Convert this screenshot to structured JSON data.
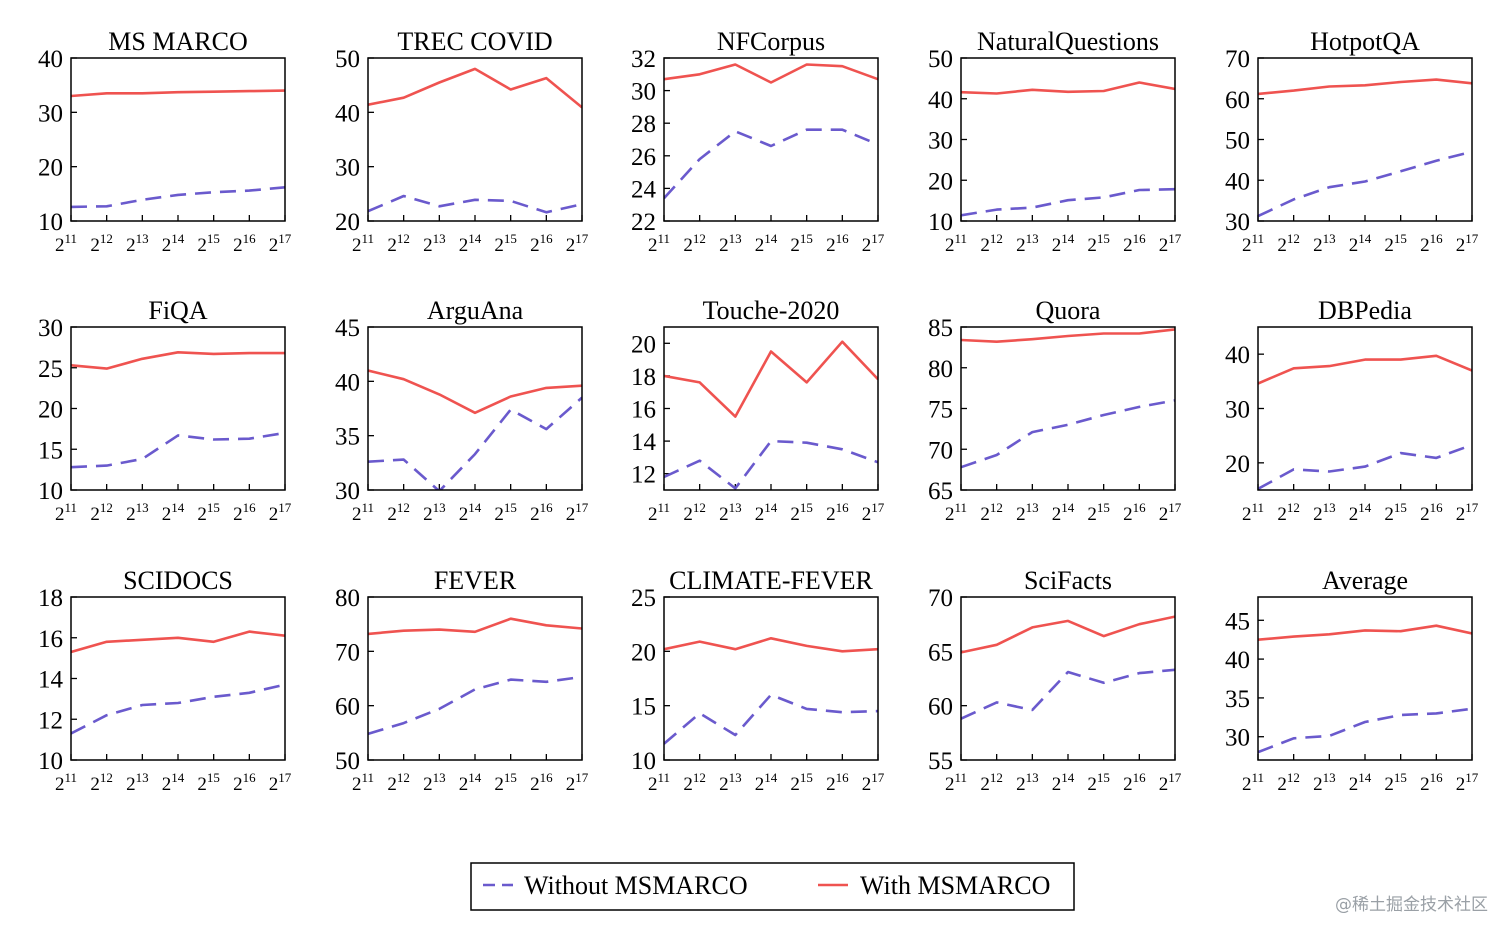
{
  "figure": {
    "x_tick_base": "2",
    "x_tick_exponents": [
      "11",
      "12",
      "13",
      "14",
      "15",
      "16",
      "17"
    ],
    "legend": {
      "entries": [
        {
          "label": "Without MSMARCO",
          "color": "#6a5acd",
          "style": "dashed"
        },
        {
          "label": "With MSMARCO",
          "color": "#ef5350",
          "style": "solid"
        }
      ],
      "placement": "bottom-center"
    },
    "watermark": "@稀土掘金技术社区"
  },
  "chart_data": [
    {
      "type": "line",
      "title": "MS MARCO",
      "x": [
        11,
        12,
        13,
        14,
        15,
        16,
        17
      ],
      "xscale": "log2",
      "ylim": [
        10,
        40
      ],
      "yticks": [
        10,
        20,
        30,
        40
      ],
      "series": [
        {
          "name": "Without MSMARCO",
          "values": [
            12.6,
            12.7,
            13.9,
            14.8,
            15.3,
            15.6,
            16.2
          ]
        },
        {
          "name": "With MSMARCO",
          "values": [
            33.0,
            33.5,
            33.5,
            33.7,
            33.8,
            33.9,
            34.0
          ]
        }
      ]
    },
    {
      "type": "line",
      "title": "TREC COVID",
      "x": [
        11,
        12,
        13,
        14,
        15,
        16,
        17
      ],
      "xscale": "log2",
      "ylim": [
        20,
        50
      ],
      "yticks": [
        20,
        30,
        40,
        50
      ],
      "series": [
        {
          "name": "Without MSMARCO",
          "values": [
            21.8,
            24.6,
            22.7,
            23.9,
            23.7,
            21.6,
            23.1
          ]
        },
        {
          "name": "With MSMARCO",
          "values": [
            41.4,
            42.7,
            45.5,
            48.0,
            44.2,
            46.3,
            40.9
          ]
        }
      ]
    },
    {
      "type": "line",
      "title": "NFCorpus",
      "x": [
        11,
        12,
        13,
        14,
        15,
        16,
        17
      ],
      "xscale": "log2",
      "ylim": [
        22,
        32
      ],
      "yticks": [
        22,
        24,
        26,
        28,
        30,
        32
      ],
      "series": [
        {
          "name": "Without MSMARCO",
          "values": [
            23.4,
            25.8,
            27.5,
            26.6,
            27.6,
            27.6,
            26.7
          ]
        },
        {
          "name": "With MSMARCO",
          "values": [
            30.7,
            31.0,
            31.6,
            30.5,
            31.6,
            31.5,
            30.7
          ]
        }
      ]
    },
    {
      "type": "line",
      "title": "NaturalQuestions",
      "x": [
        11,
        12,
        13,
        14,
        15,
        16,
        17
      ],
      "xscale": "log2",
      "ylim": [
        10,
        50
      ],
      "yticks": [
        10,
        20,
        30,
        40,
        50
      ],
      "series": [
        {
          "name": "Without MSMARCO",
          "values": [
            11.4,
            12.8,
            13.3,
            15.1,
            15.8,
            17.6,
            17.8
          ]
        },
        {
          "name": "With MSMARCO",
          "values": [
            41.6,
            41.3,
            42.2,
            41.7,
            41.9,
            44.0,
            42.4
          ]
        }
      ]
    },
    {
      "type": "line",
      "title": "HotpotQA",
      "x": [
        11,
        12,
        13,
        14,
        15,
        16,
        17
      ],
      "xscale": "log2",
      "ylim": [
        30,
        70
      ],
      "yticks": [
        30,
        40,
        50,
        60,
        70
      ],
      "series": [
        {
          "name": "Without MSMARCO",
          "values": [
            31.2,
            35.3,
            38.3,
            39.7,
            42.2,
            44.8,
            47.0
          ]
        },
        {
          "name": "With MSMARCO",
          "values": [
            61.2,
            62.0,
            63.0,
            63.3,
            64.1,
            64.7,
            63.8
          ]
        }
      ]
    },
    {
      "type": "line",
      "title": "FiQA",
      "x": [
        11,
        12,
        13,
        14,
        15,
        16,
        17
      ],
      "xscale": "log2",
      "ylim": [
        10,
        30
      ],
      "yticks": [
        10,
        15,
        20,
        25,
        30
      ],
      "series": [
        {
          "name": "Without MSMARCO",
          "values": [
            12.8,
            13.0,
            13.8,
            16.7,
            16.2,
            16.3,
            17.0
          ]
        },
        {
          "name": "With MSMARCO",
          "values": [
            25.3,
            24.9,
            26.1,
            26.9,
            26.7,
            26.8,
            26.8
          ]
        }
      ]
    },
    {
      "type": "line",
      "title": "ArguAna",
      "x": [
        11,
        12,
        13,
        14,
        15,
        16,
        17
      ],
      "xscale": "log2",
      "ylim": [
        30,
        45
      ],
      "yticks": [
        30,
        35,
        40,
        45
      ],
      "series": [
        {
          "name": "Without MSMARCO",
          "values": [
            32.6,
            32.8,
            29.9,
            33.3,
            37.4,
            35.6,
            38.5
          ]
        },
        {
          "name": "With MSMARCO",
          "values": [
            41.0,
            40.2,
            38.8,
            37.1,
            38.6,
            39.4,
            39.6
          ]
        }
      ]
    },
    {
      "type": "line",
      "title": "Touche-2020",
      "x": [
        11,
        12,
        13,
        14,
        15,
        16,
        17
      ],
      "xscale": "log2",
      "ylim": [
        11,
        21
      ],
      "yticks": [
        12,
        14,
        16,
        18,
        20
      ],
      "series": [
        {
          "name": "Without MSMARCO",
          "values": [
            11.8,
            12.8,
            11.1,
            14.0,
            13.9,
            13.5,
            12.7
          ]
        },
        {
          "name": "With MSMARCO",
          "values": [
            18.0,
            17.6,
            15.5,
            19.5,
            17.6,
            20.1,
            17.8
          ]
        }
      ]
    },
    {
      "type": "line",
      "title": "Quora",
      "x": [
        11,
        12,
        13,
        14,
        15,
        16,
        17
      ],
      "xscale": "log2",
      "ylim": [
        65,
        85
      ],
      "yticks": [
        65,
        70,
        75,
        80,
        85
      ],
      "series": [
        {
          "name": "Without MSMARCO",
          "values": [
            67.8,
            69.3,
            72.1,
            73.0,
            74.2,
            75.2,
            76.0
          ]
        },
        {
          "name": "With MSMARCO",
          "values": [
            83.4,
            83.2,
            83.5,
            83.9,
            84.2,
            84.2,
            84.7
          ]
        }
      ]
    },
    {
      "type": "line",
      "title": "DBPedia",
      "x": [
        11,
        12,
        13,
        14,
        15,
        16,
        17
      ],
      "xscale": "log2",
      "ylim": [
        15,
        45
      ],
      "yticks": [
        20,
        30,
        40
      ],
      "series": [
        {
          "name": "Without MSMARCO",
          "values": [
            15.2,
            18.8,
            18.4,
            19.3,
            21.8,
            20.9,
            23.3
          ]
        },
        {
          "name": "With MSMARCO",
          "values": [
            34.6,
            37.4,
            37.8,
            39.0,
            39.0,
            39.7,
            37.0
          ]
        }
      ]
    },
    {
      "type": "line",
      "title": "SCIDOCS",
      "x": [
        11,
        12,
        13,
        14,
        15,
        16,
        17
      ],
      "xscale": "log2",
      "ylim": [
        10,
        18
      ],
      "yticks": [
        10,
        12,
        14,
        16,
        18
      ],
      "series": [
        {
          "name": "Without MSMARCO",
          "values": [
            11.3,
            12.2,
            12.7,
            12.8,
            13.1,
            13.3,
            13.7
          ]
        },
        {
          "name": "With MSMARCO",
          "values": [
            15.3,
            15.8,
            15.9,
            16.0,
            15.8,
            16.3,
            16.1
          ]
        }
      ]
    },
    {
      "type": "line",
      "title": "FEVER",
      "x": [
        11,
        12,
        13,
        14,
        15,
        16,
        17
      ],
      "xscale": "log2",
      "ylim": [
        50,
        80
      ],
      "yticks": [
        50,
        60,
        70,
        80
      ],
      "series": [
        {
          "name": "Without MSMARCO",
          "values": [
            54.8,
            56.8,
            59.4,
            63.0,
            64.8,
            64.4,
            65.3
          ]
        },
        {
          "name": "With MSMARCO",
          "values": [
            73.2,
            73.8,
            74.0,
            73.6,
            76.0,
            74.8,
            74.2
          ]
        }
      ]
    },
    {
      "type": "line",
      "title": "CLIMATE-FEVER",
      "x": [
        11,
        12,
        13,
        14,
        15,
        16,
        17
      ],
      "xscale": "log2",
      "ylim": [
        10,
        25
      ],
      "yticks": [
        10,
        15,
        20,
        25
      ],
      "series": [
        {
          "name": "Without MSMARCO",
          "values": [
            11.5,
            14.3,
            12.3,
            16.0,
            14.7,
            14.4,
            14.5
          ]
        },
        {
          "name": "With MSMARCO",
          "values": [
            20.2,
            20.9,
            20.2,
            21.2,
            20.5,
            20.0,
            20.2
          ]
        }
      ]
    },
    {
      "type": "line",
      "title": "SciFacts",
      "x": [
        11,
        12,
        13,
        14,
        15,
        16,
        17
      ],
      "xscale": "log2",
      "ylim": [
        55,
        70
      ],
      "yticks": [
        55,
        60,
        65,
        70
      ],
      "series": [
        {
          "name": "Without MSMARCO",
          "values": [
            58.8,
            60.3,
            59.6,
            63.1,
            62.1,
            63.0,
            63.3
          ]
        },
        {
          "name": "With MSMARCO",
          "values": [
            64.9,
            65.6,
            67.2,
            67.8,
            66.4,
            67.5,
            68.2
          ]
        }
      ]
    },
    {
      "type": "line",
      "title": "Average",
      "x": [
        11,
        12,
        13,
        14,
        15,
        16,
        17
      ],
      "xscale": "log2",
      "ylim": [
        27,
        48
      ],
      "yticks": [
        30,
        35,
        40,
        45
      ],
      "series": [
        {
          "name": "Without MSMARCO",
          "values": [
            28.0,
            29.8,
            30.1,
            31.9,
            32.8,
            33.0,
            33.6
          ]
        },
        {
          "name": "With MSMARCO",
          "values": [
            42.5,
            42.9,
            43.2,
            43.7,
            43.6,
            44.3,
            43.3
          ]
        }
      ]
    }
  ]
}
